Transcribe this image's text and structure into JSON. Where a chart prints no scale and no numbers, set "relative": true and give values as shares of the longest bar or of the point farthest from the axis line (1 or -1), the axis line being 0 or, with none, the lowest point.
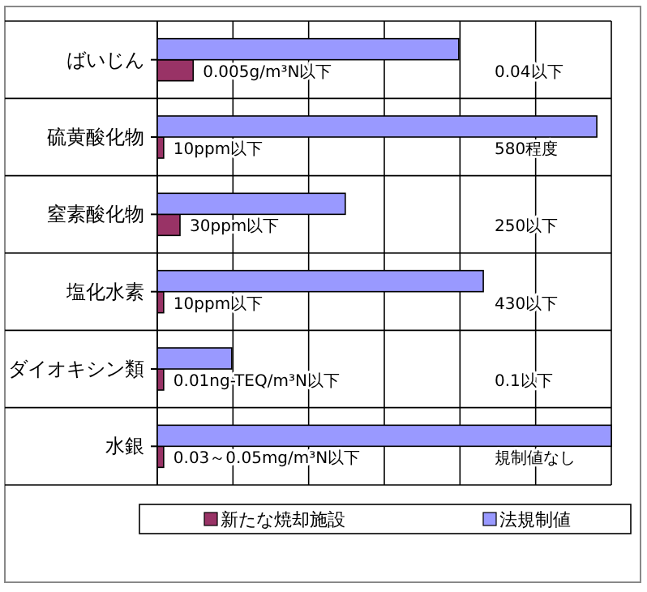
{
  "chart_data": {
    "type": "bar",
    "orientation": "horizontal",
    "relative": true,
    "grid": true,
    "legend": "bottom",
    "categories": [
      "ばいじん",
      "硫黄酸化物",
      "窒素酸化物",
      "塩化水素",
      "ダイオキシン類",
      "水銀"
    ],
    "series": [
      {
        "name": "新たな焼却施設",
        "color": "#993366",
        "values": [
          0.079,
          0.014,
          0.05,
          0.014,
          0.014,
          0.014
        ]
      },
      {
        "name": "法規制値",
        "color": "#9999ff",
        "values": [
          0.664,
          0.968,
          0.414,
          0.718,
          0.164,
          1
        ]
      }
    ],
    "annotations": [
      {
        "text": "0.005g/m³N以下",
        "x": 0.079,
        "y": "ばいじん"
      },
      {
        "text": "10ppm以下",
        "x": 0.014,
        "y": "硫黄酸化物"
      },
      {
        "text": "30ppm以下",
        "x": 0.05,
        "y": "窒素酸化物"
      },
      {
        "text": "10ppm以下",
        "x": 0.014,
        "y": "塩化水素"
      },
      {
        "text": "0.01ng-TEQ/m³N以下",
        "x": 0.014,
        "y": "ダイオキシン類"
      },
      {
        "text": "0.03～0.05mg/m³N以下",
        "x": 0.014,
        "y": "水銀"
      },
      "0.04以下",
      "580程度",
      "250以下",
      "430以下",
      "0.1以下",
      "規制値なし"
    ]
  }
}
